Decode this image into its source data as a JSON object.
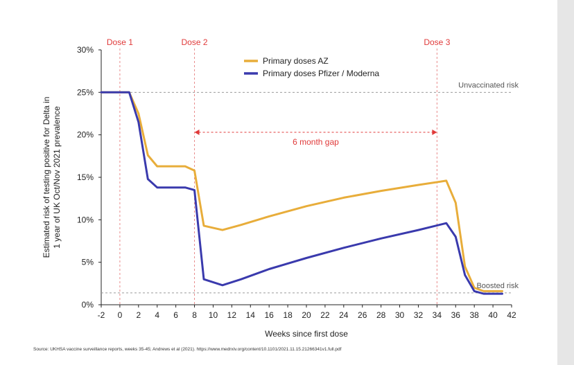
{
  "chart_data": {
    "type": "line",
    "xlabel": "Weeks since first dose",
    "ylabel_lines": [
      "Estimated risk of testing positive for Delta in",
      "1 year of UK Oct/Nov 2021 prevalence"
    ],
    "xlim": [
      -2,
      42
    ],
    "ylim": [
      0,
      30
    ],
    "x_ticks": [
      -2,
      0,
      2,
      4,
      6,
      8,
      10,
      12,
      14,
      16,
      18,
      20,
      22,
      24,
      26,
      28,
      30,
      32,
      34,
      36,
      38,
      40,
      42
    ],
    "y_ticks": [
      0,
      5,
      10,
      15,
      20,
      25,
      30
    ],
    "y_tick_labels": [
      "0%",
      "5%",
      "10%",
      "15%",
      "20%",
      "25%",
      "30%"
    ],
    "series": [
      {
        "name": "Primary doses AZ",
        "color": "#e8ad3a",
        "x": [
          -2,
          1,
          2,
          3,
          4,
          7,
          8,
          9,
          11,
          13,
          16,
          20,
          24,
          28,
          32,
          35,
          36,
          37,
          38,
          39,
          41
        ],
        "y": [
          25,
          25,
          22.5,
          17.6,
          16.3,
          16.3,
          15.8,
          9.3,
          8.8,
          9.4,
          10.4,
          11.6,
          12.6,
          13.4,
          14.1,
          14.6,
          12.0,
          4.5,
          2.0,
          1.6,
          1.6
        ]
      },
      {
        "name": "Primary doses Pfizer / Moderna",
        "color": "#3a3aad",
        "x": [
          -2,
          1,
          2,
          3,
          4,
          7,
          8,
          9,
          11,
          13,
          16,
          20,
          24,
          28,
          32,
          35,
          36,
          37,
          38,
          39,
          41
        ],
        "y": [
          25,
          25,
          21.5,
          14.8,
          13.8,
          13.8,
          13.5,
          3.0,
          2.3,
          3.0,
          4.2,
          5.5,
          6.7,
          7.8,
          8.8,
          9.6,
          8.0,
          3.5,
          1.6,
          1.3,
          1.3
        ]
      }
    ],
    "dose_lines": [
      {
        "label": "Dose 1",
        "x": 0
      },
      {
        "label": "Dose 2",
        "x": 8
      },
      {
        "label": "Dose 3",
        "x": 34
      }
    ],
    "reference_lines": [
      {
        "label": "Unvaccinated risk",
        "y": 25
      },
      {
        "label": "Boosted risk",
        "y": 1.4
      }
    ],
    "annotation": {
      "label": "6 month gap",
      "x_from": 8,
      "x_to": 34,
      "y": 20.3
    },
    "legend_placement": "top-center",
    "grid": false
  },
  "source": "Source: UKHSA vaccine surveillance reports, weeks 35-45; Andrews et al (2021). https://www.medrxiv.org/content/10.1101/2021.11.15.21266341v1.full.pdf"
}
